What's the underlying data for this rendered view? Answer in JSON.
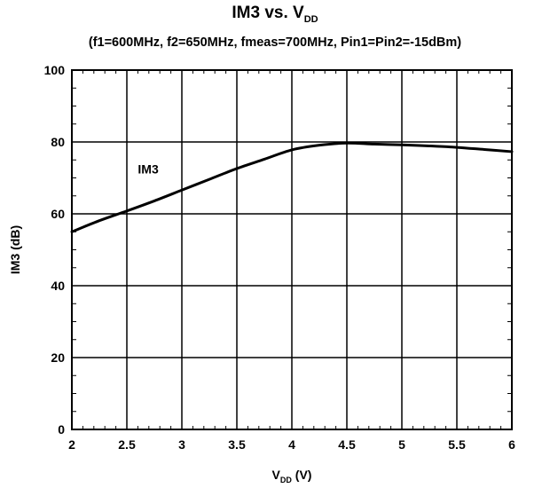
{
  "chart_data": {
    "type": "line",
    "title": "IM3 vs. V",
    "title_subscript": "DD",
    "subtitle": "(f1=600MHz, f2=650MHz, fmeas=700MHz, Pin1=Pin2=-15dBm)",
    "xlabel": "V",
    "xlabel_subscript": "DD",
    "xlabel_unit": " (V)",
    "ylabel": "IM3 (dB)",
    "xlim": [
      2,
      6
    ],
    "ylim": [
      0,
      100
    ],
    "x_ticks": [
      2,
      2.5,
      3,
      3.5,
      4,
      4.5,
      5,
      5.5,
      6
    ],
    "x_tick_labels": [
      "2",
      "2.5",
      "3",
      "3.5",
      "4",
      "4.5",
      "5",
      "5.5",
      "6"
    ],
    "y_ticks": [
      0,
      20,
      40,
      60,
      80,
      100
    ],
    "y_tick_labels": [
      "0",
      "20",
      "40",
      "60",
      "80",
      "100"
    ],
    "grid": true,
    "legend": "none",
    "series": [
      {
        "name": "IM3",
        "label_position": [
          2.6,
          72.5
        ],
        "color": "#000000",
        "x": [
          2.0,
          2.25,
          2.5,
          2.75,
          3.0,
          3.25,
          3.5,
          3.75,
          4.0,
          4.25,
          4.5,
          4.75,
          5.0,
          5.25,
          5.5,
          5.75,
          6.0
        ],
        "y": [
          55.0,
          58.1,
          60.8,
          63.6,
          66.6,
          69.6,
          72.6,
          75.2,
          77.8,
          79.1,
          79.7,
          79.4,
          79.2,
          78.9,
          78.5,
          77.9,
          77.3
        ]
      }
    ]
  }
}
